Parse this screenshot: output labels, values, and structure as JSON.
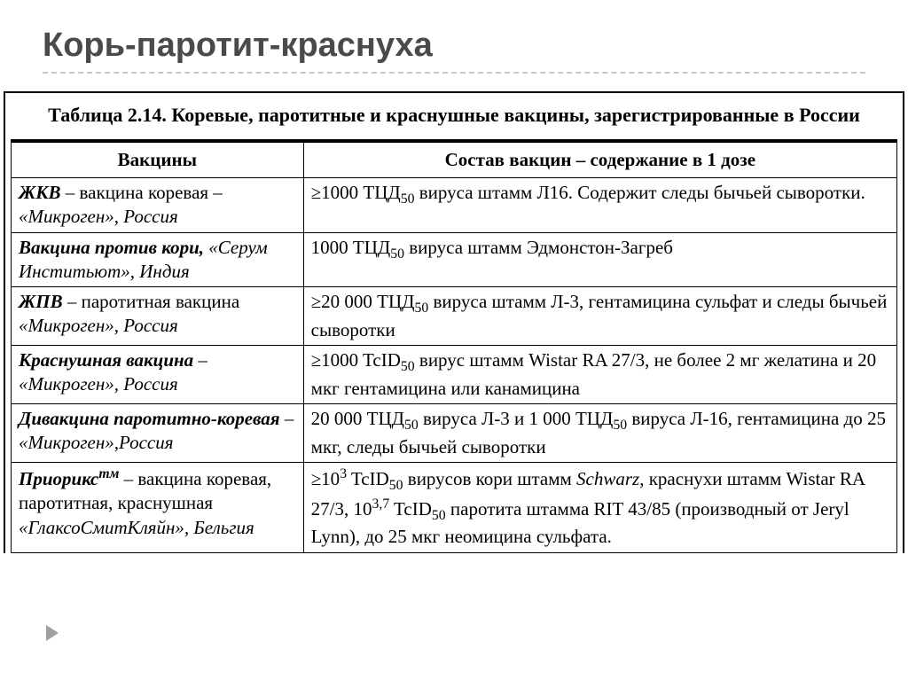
{
  "slide": {
    "title": "Корь-паротит-краснуха",
    "title_color": "#4a4a4a",
    "title_fontsize": 38
  },
  "table": {
    "caption": "Таблица 2.14. Коревые, паротитные и краснушные вакцины, зарегистрированные в России",
    "columns": [
      {
        "label": "Вакцины",
        "width": "33%"
      },
      {
        "label": "Состав вакцин – содержание в 1 дозе",
        "width": "67%"
      }
    ],
    "rows": [
      {
        "vaccine_html": "<span class='b'>ЖКВ</span> – вакцина коревая – <span class='i'>«Микроген», Россия</span>",
        "content_html": "≥1000 ТЦД<sub>50</sub> вируса штамм Л16. Содержит следы бычьей сыворотки."
      },
      {
        "vaccine_html": "<span class='b'>Вакцина против кори,</span> <span class='i'>«Серум Инститьют», Индия</span>",
        "content_html": "1000 ТЦД<sub>50</sub> вируса штамм Эдмонстон-Загреб"
      },
      {
        "vaccine_html": "<span class='b'>ЖПВ</span> – паротитная вакцина <span class='i'>«Микроген», Россия</span>",
        "content_html": "≥20 000 ТЦД<sub>50</sub> вируса штамм Л-3, гентамицина сульфат и следы бычьей сыворотки"
      },
      {
        "vaccine_html": "<span class='b'>Краснушная вакцина</span> – <span class='i'>«Микроген», Россия</span>",
        "content_html": "≥1000 TcID<sub>50</sub> вирус штамм Wistar RA 27/3, не более 2 мг желатина и 20 мкг гентамицина или канамицина"
      },
      {
        "vaccine_html": "<span class='b'>Дивакцина паротитно-коревая</span> – <span class='i'>«Микроген»,Россия</span>",
        "content_html": "20 000 ТЦД<sub>50</sub> вируса Л-3 и 1 000 ТЦД<sub>50</sub> вируса Л-16, гентамицина до 25 мкг, следы бычьей сыворотки"
      },
      {
        "vaccine_html": "<span class='b'>Приорикс<sup>тм</sup></span> – вакцина коревая, паротитная, краснушная <span class='i'>«ГлаксоСмитКляйн», Бельгия</span>",
        "content_html": "≥10<sup>3</sup> TcID<sub>50</sub> вирусов кори штамм <span class='i'>Schwarz</span>, краснухи штамм Wistar RA 27/3, 10<sup>3,7</sup> TcID<sub>50</sub> паротита штамма RIT 43/85 (производный от Jeryl Lynn), до 25 мкг неомицина сульфата."
      }
    ],
    "border_color": "#000000",
    "font_family": "Times New Roman",
    "fontsize": 21
  },
  "marker": {
    "color": "#a0a0a0"
  }
}
